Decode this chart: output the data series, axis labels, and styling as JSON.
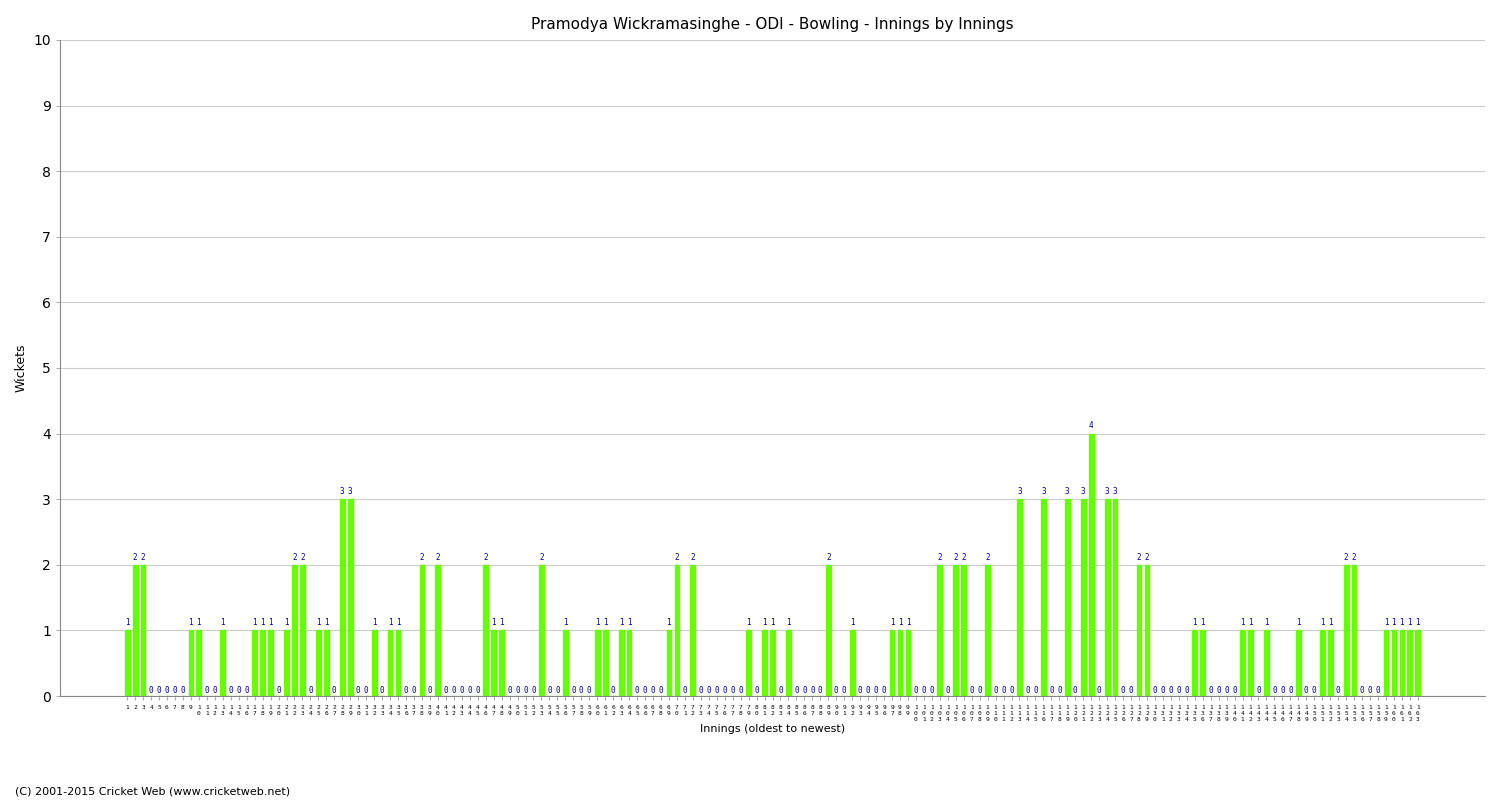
{
  "title": "Pramodya Wickramasinghe - ODI - Bowling - Innings by Innings",
  "ylabel": "Wickets",
  "xlabel": "Innings (oldest to newest)",
  "bar_color": "#66FF00",
  "label_color": "#00008B",
  "background_color": "#FFFFFF",
  "ylim": [
    0,
    10
  ],
  "yticks": [
    0,
    1,
    2,
    3,
    4,
    5,
    6,
    7,
    8,
    9,
    10
  ],
  "footer": "(C) 2001-2015 Cricket Web (www.cricketweb.net)",
  "wickets": [
    1,
    2,
    2,
    0,
    0,
    0,
    0,
    0,
    1,
    1,
    0,
    0,
    1,
    0,
    0,
    0,
    1,
    1,
    1,
    0,
    1,
    2,
    2,
    0,
    1,
    1,
    0,
    3,
    3,
    0,
    0,
    1,
    0,
    1,
    1,
    0,
    0,
    2,
    0,
    2,
    0,
    0,
    0,
    0,
    0,
    2,
    1,
    1,
    0,
    0,
    0,
    0,
    2,
    0,
    0,
    1,
    0,
    0,
    0,
    1,
    1,
    0,
    1,
    1,
    0,
    0,
    0,
    0,
    1,
    2,
    0,
    2,
    0,
    0,
    0,
    0,
    0,
    0,
    1,
    0,
    1,
    1,
    0,
    1,
    0,
    0,
    0,
    0,
    2,
    0,
    0,
    1,
    0,
    0,
    0,
    0,
    1,
    1,
    1,
    0,
    0,
    0,
    2,
    0,
    2,
    2,
    0,
    0,
    2,
    0,
    0,
    0,
    3,
    0,
    0,
    3,
    0,
    0,
    3,
    0,
    3,
    4,
    0,
    3,
    3,
    0,
    0,
    2,
    2,
    0,
    0,
    0,
    0,
    0,
    1,
    1,
    0,
    0,
    0,
    0,
    1,
    1,
    0,
    1,
    0,
    0,
    0,
    1,
    0,
    0,
    1,
    1,
    0,
    2,
    2,
    0,
    0,
    0,
    1,
    1,
    1,
    1,
    1
  ],
  "title_fontsize": 11,
  "ylabel_fontsize": 9,
  "xlabel_fontsize": 8,
  "tick_label_fontsize": 4.5,
  "bar_label_fontsize": 5.5,
  "footer_fontsize": 8
}
